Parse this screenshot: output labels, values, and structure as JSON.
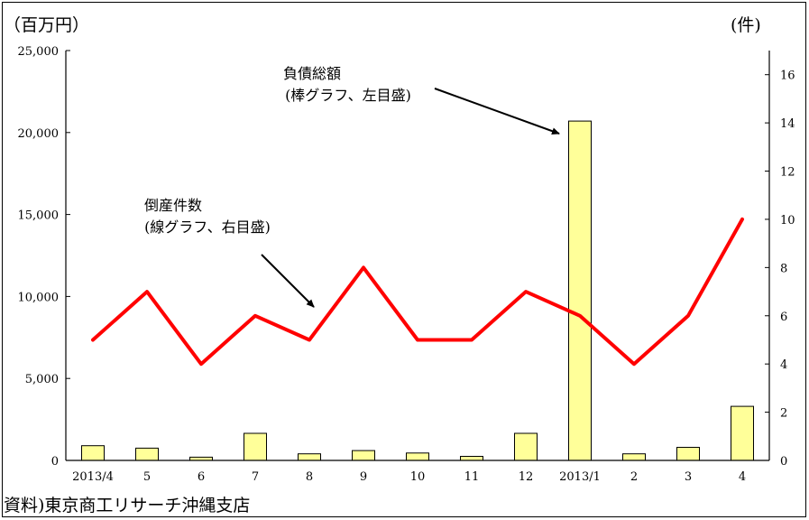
{
  "chart_data": {
    "type": "bar+line",
    "left_unit": "（百万円）",
    "right_unit": "(件)",
    "categories": [
      "2013/4",
      "5",
      "6",
      "7",
      "8",
      "9",
      "10",
      "11",
      "12",
      "2013/1",
      "2",
      "3",
      "4"
    ],
    "y_left_ticks": [
      "0",
      "5,000",
      "10,000",
      "15,000",
      "20,000",
      "25,000"
    ],
    "y_right_ticks": [
      "0",
      "2",
      "4",
      "6",
      "8",
      "10",
      "12",
      "14",
      "16"
    ],
    "ylim_left": [
      0,
      25000
    ],
    "ylim_right": [
      0,
      17
    ],
    "series": [
      {
        "kind": "bar",
        "axis": "left",
        "values": [
          900,
          750,
          200,
          1650,
          400,
          600,
          450,
          250,
          1650,
          20700,
          400,
          800,
          3300
        ],
        "color": "#ffff99"
      },
      {
        "kind": "line",
        "axis": "right",
        "values": [
          5,
          7,
          4,
          6,
          5,
          8,
          5,
          5,
          7,
          6,
          4,
          6,
          10
        ],
        "color": "#ff0000"
      }
    ],
    "annotations": [
      {
        "line1": "負債総額",
        "line2": "(棒グラフ、左目盛)"
      },
      {
        "line1": "倒産件数",
        "line2": "(線グラフ、右目盛)"
      }
    ],
    "source": "資料)東京商工リサーチ沖縄支店"
  }
}
